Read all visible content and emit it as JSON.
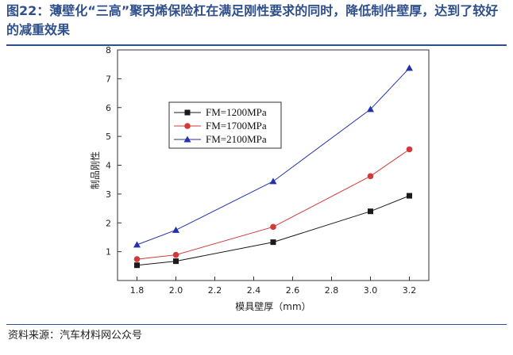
{
  "header": {
    "title": "图22：薄壁化“三高”聚丙烯保险杠在满足刚性要求的同时，降低制件壁厚，达到了较好的减重效果"
  },
  "footer": {
    "source": "资料来源：汽车材料网公众号"
  },
  "colors": {
    "title": "#2e4f8c",
    "series": [
      "#1a1a1a",
      "#d23a3a",
      "#2233aa"
    ]
  },
  "chart_data": {
    "type": "line",
    "title": "",
    "xlabel": "模具壁厚（mm）",
    "ylabel": "制品刚性",
    "xlim": [
      1.7,
      3.3
    ],
    "ylim": [
      0,
      8
    ],
    "xticks": [
      "1.8",
      "2.0",
      "2.2",
      "2.4",
      "2.6",
      "2.8",
      "3.0",
      "3.2"
    ],
    "yticks": [
      "1",
      "2",
      "3",
      "4",
      "5",
      "6",
      "7",
      "8"
    ],
    "x": [
      1.8,
      2.0,
      2.5,
      3.0,
      3.2
    ],
    "series": [
      {
        "name": "FM=1200MPa",
        "marker": "square",
        "values": [
          0.53,
          0.67,
          1.33,
          2.4,
          2.94
        ]
      },
      {
        "name": "FM=1700MPa",
        "marker": "circle",
        "values": [
          0.74,
          0.89,
          1.86,
          3.62,
          4.55
        ]
      },
      {
        "name": "FM=2100MPa",
        "marker": "triangle",
        "values": [
          1.24,
          1.75,
          3.44,
          5.94,
          7.37
        ]
      }
    ],
    "legend_position": "top-left",
    "grid": false
  }
}
